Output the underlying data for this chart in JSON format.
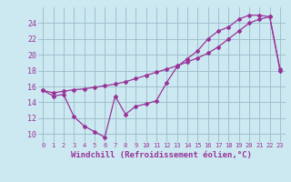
{
  "xlabel": "Windchill (Refroidissement éolien,°C)",
  "bg_color": "#cce8f0",
  "grid_color": "#99bbcc",
  "line_color": "#993399",
  "line1_x": [
    0,
    1,
    2,
    3,
    4,
    5,
    6,
    7,
    8,
    9,
    10,
    11,
    12,
    13,
    14,
    15,
    16,
    17,
    18,
    19,
    20,
    21,
    22,
    23
  ],
  "line1_y": [
    15.5,
    14.8,
    15.0,
    12.2,
    11.0,
    10.3,
    9.6,
    14.8,
    12.5,
    13.5,
    13.8,
    14.2,
    16.5,
    18.5,
    19.5,
    20.5,
    22.0,
    23.0,
    23.5,
    24.5,
    25.0,
    25.0,
    24.8,
    18.0
  ],
  "line2_x": [
    0,
    1,
    2,
    3,
    4,
    5,
    6,
    7,
    8,
    9,
    10,
    11,
    12,
    13,
    14,
    15,
    16,
    17,
    18,
    19,
    20,
    21,
    22,
    23
  ],
  "line2_y": [
    15.5,
    15.2,
    15.4,
    15.6,
    15.7,
    15.9,
    16.1,
    16.3,
    16.6,
    17.0,
    17.4,
    17.8,
    18.2,
    18.6,
    19.1,
    19.6,
    20.2,
    21.0,
    22.0,
    23.0,
    24.0,
    24.5,
    24.8,
    18.2
  ],
  "xlim": [
    -0.5,
    23.5
  ],
  "ylim": [
    9.0,
    26.0
  ],
  "xticks": [
    0,
    1,
    2,
    3,
    4,
    5,
    6,
    7,
    8,
    9,
    10,
    11,
    12,
    13,
    14,
    15,
    16,
    17,
    18,
    19,
    20,
    21,
    22,
    23
  ],
  "yticks": [
    10,
    12,
    14,
    16,
    18,
    20,
    22,
    24
  ],
  "marker": "D",
  "markersize": 2.0,
  "linewidth": 0.9,
  "tick_fontsize": 5,
  "xlabel_fontsize": 6.5
}
